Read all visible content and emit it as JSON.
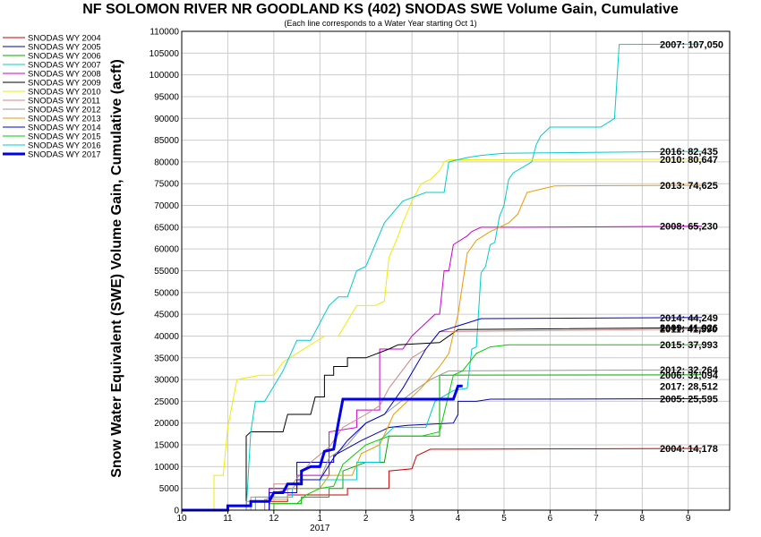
{
  "chart_data": {
    "type": "line",
    "title": "NF SOLOMON RIVER NR GOODLAND KS (402) SNODAS SWE Volume Gain, Cumulative",
    "subtitle": "(Each line corresponds to a Water Year starting Oct 1)",
    "ylabel": "Snow Water Equivalent (SWE) Volume Gain, Cumulative (acft)",
    "x_ticks": [
      "10",
      "11",
      "12",
      "1",
      "2",
      "3",
      "4",
      "5",
      "6",
      "7",
      "8",
      "9"
    ],
    "x_year_label": "2017",
    "xlim": [
      10,
      21.9
    ],
    "ylim": [
      0,
      110000
    ],
    "y_step": 5000,
    "grid": true,
    "legend_position": "left",
    "series": [
      {
        "name": "SNODAS WY 2004",
        "color": "#cc0000",
        "width": 1,
        "end_label": "2004: 14,178",
        "points": [
          [
            10,
            0
          ],
          [
            11.8,
            0
          ],
          [
            11.8,
            2000
          ],
          [
            12.3,
            2000
          ],
          [
            12.3,
            3500
          ],
          [
            13.6,
            3500
          ],
          [
            13.6,
            5000
          ],
          [
            14.5,
            5000
          ],
          [
            14.5,
            9000
          ],
          [
            15,
            9500
          ],
          [
            15.1,
            12500
          ],
          [
            15.4,
            14000
          ],
          [
            21.3,
            14178
          ]
        ]
      },
      {
        "name": "SNODAS WY 2005",
        "color": "#0000aa",
        "width": 1,
        "end_label": "2005: 25,595",
        "points": [
          [
            10,
            0
          ],
          [
            11.9,
            0
          ],
          [
            11.9,
            5000
          ],
          [
            12.5,
            5000
          ],
          [
            12.5,
            11000
          ],
          [
            13.3,
            11000
          ],
          [
            13.3,
            12500
          ],
          [
            13.9,
            16000
          ],
          [
            14.5,
            19000
          ],
          [
            14.9,
            19500
          ],
          [
            15.9,
            20000
          ],
          [
            16,
            22000
          ],
          [
            16,
            25000
          ],
          [
            16.4,
            25000
          ],
          [
            16.7,
            25500
          ],
          [
            21.3,
            25595
          ]
        ]
      },
      {
        "name": "SNODAS WY 2006",
        "color": "#00aa00",
        "width": 1,
        "end_label": "2006: 31,094",
        "points": [
          [
            10,
            0
          ],
          [
            11.9,
            0
          ],
          [
            11.9,
            1500
          ],
          [
            12.6,
            1500
          ],
          [
            12.6,
            3000
          ],
          [
            13.2,
            3000
          ],
          [
            13.2,
            5000
          ],
          [
            13.5,
            5000
          ],
          [
            13.5,
            9000
          ],
          [
            14,
            11000
          ],
          [
            14.4,
            11000
          ],
          [
            14.5,
            17000
          ],
          [
            15.6,
            17000
          ],
          [
            15.6,
            31000
          ],
          [
            21.3,
            31094
          ]
        ]
      },
      {
        "name": "SNODAS WY 2007",
        "color": "#00cccc",
        "width": 1,
        "end_label": "2007: 107,050",
        "points": [
          [
            10,
            0
          ],
          [
            11.6,
            0
          ],
          [
            11.6,
            3000
          ],
          [
            12.4,
            3000
          ],
          [
            12.4,
            5000
          ],
          [
            13,
            5000
          ],
          [
            13,
            7000
          ],
          [
            13.8,
            7000
          ],
          [
            13.8,
            11000
          ],
          [
            14.3,
            11000
          ],
          [
            14.3,
            16000
          ],
          [
            14.6,
            19000
          ],
          [
            15.3,
            19000
          ],
          [
            15.5,
            25000
          ],
          [
            15.9,
            27500
          ],
          [
            16.2,
            28000
          ],
          [
            16.3,
            37000
          ],
          [
            16.4,
            37500
          ],
          [
            16.5,
            54500
          ],
          [
            16.6,
            56000
          ],
          [
            16.7,
            61000
          ],
          [
            16.8,
            61500
          ],
          [
            16.9,
            67500
          ],
          [
            17,
            70000
          ],
          [
            17.1,
            76000
          ],
          [
            17.2,
            77500
          ],
          [
            17.6,
            80000
          ],
          [
            17.7,
            84000
          ],
          [
            17.8,
            86000
          ],
          [
            18,
            88000
          ],
          [
            19.1,
            88000
          ],
          [
            19.4,
            90000
          ],
          [
            19.5,
            107000
          ],
          [
            21.3,
            107050
          ]
        ]
      },
      {
        "name": "SNODAS WY 2008",
        "color": "#cc00cc",
        "width": 1,
        "end_label": "2008: 65,230",
        "points": [
          [
            10,
            0
          ],
          [
            11.9,
            0
          ],
          [
            11.9,
            5000
          ],
          [
            12.5,
            5000
          ],
          [
            12.5,
            8000
          ],
          [
            13.2,
            8000
          ],
          [
            13.2,
            18000
          ],
          [
            13.8,
            19000
          ],
          [
            13.8,
            23000
          ],
          [
            14.3,
            23000
          ],
          [
            14.3,
            37000
          ],
          [
            14.8,
            37000
          ],
          [
            15,
            40000
          ],
          [
            15.5,
            45000
          ],
          [
            15.6,
            45000
          ],
          [
            15.7,
            55000
          ],
          [
            15.8,
            55000
          ],
          [
            15.9,
            61000
          ],
          [
            16.2,
            63000
          ],
          [
            16.3,
            64000
          ],
          [
            16.5,
            65000
          ],
          [
            17.4,
            65000
          ],
          [
            21.3,
            65230
          ]
        ]
      },
      {
        "name": "SNODAS WY 2009",
        "color": "#000000",
        "width": 1,
        "end_label": "2009: 41,926",
        "points": [
          [
            10,
            0
          ],
          [
            11.4,
            0
          ],
          [
            11.4,
            17000
          ],
          [
            11.5,
            18000
          ],
          [
            12.2,
            18000
          ],
          [
            12.3,
            22000
          ],
          [
            12.8,
            22000
          ],
          [
            12.9,
            26000
          ],
          [
            13.1,
            26000
          ],
          [
            13.1,
            31000
          ],
          [
            13.3,
            31000
          ],
          [
            13.3,
            33000
          ],
          [
            13.6,
            33000
          ],
          [
            13.6,
            35000
          ],
          [
            14,
            35000
          ],
          [
            14.5,
            37000
          ],
          [
            14.7,
            38000
          ],
          [
            15.6,
            38500
          ],
          [
            15.8,
            40000
          ],
          [
            16,
            41500
          ],
          [
            21.3,
            41926
          ]
        ]
      },
      {
        "name": "SNODAS WY 2010",
        "color": "#eeee00",
        "width": 1,
        "end_label": "2010: 80,647",
        "points": [
          [
            10,
            0
          ],
          [
            10.7,
            0
          ],
          [
            10.7,
            8000
          ],
          [
            10.9,
            8000
          ],
          [
            11,
            19000
          ],
          [
            11.2,
            30000
          ],
          [
            11.7,
            31000
          ],
          [
            12,
            31000
          ],
          [
            12.2,
            34000
          ],
          [
            13.1,
            40000
          ],
          [
            13.4,
            40000
          ],
          [
            13.8,
            47000
          ],
          [
            14.2,
            47000
          ],
          [
            14.4,
            48000
          ],
          [
            14.5,
            58000
          ],
          [
            14.7,
            63000
          ],
          [
            14.8,
            66000
          ],
          [
            15,
            71000
          ],
          [
            15.1,
            73000
          ],
          [
            15.2,
            75000
          ],
          [
            15.4,
            76000
          ],
          [
            15.6,
            78000
          ],
          [
            15.7,
            80000
          ],
          [
            15.8,
            80500
          ],
          [
            21.3,
            80647
          ]
        ]
      },
      {
        "name": "SNODAS WY 2011",
        "color": "#cc8888",
        "width": 1,
        "end_label": "2011: 41,590",
        "points": [
          [
            10,
            0
          ],
          [
            11.5,
            0
          ],
          [
            11.5,
            3000
          ],
          [
            12,
            3000
          ],
          [
            12,
            6000
          ],
          [
            12.4,
            6000
          ],
          [
            12.8,
            11000
          ],
          [
            13.2,
            14500
          ],
          [
            13.5,
            19000
          ],
          [
            14,
            22000
          ],
          [
            14.3,
            24000
          ],
          [
            14.5,
            28000
          ],
          [
            15,
            35000
          ],
          [
            15.3,
            37000
          ],
          [
            15.6,
            41000
          ],
          [
            21.3,
            41590
          ]
        ]
      },
      {
        "name": "SNODAS WY 2012",
        "color": "#999999",
        "width": 1,
        "end_label": "2012: 32,264",
        "points": [
          [
            10,
            0
          ],
          [
            11.4,
            0
          ],
          [
            11.4,
            2000
          ],
          [
            11.8,
            2000
          ],
          [
            12,
            4000
          ],
          [
            12.4,
            5000
          ],
          [
            12.6,
            7000
          ],
          [
            13,
            7000
          ],
          [
            13.2,
            12000
          ],
          [
            13.6,
            15000
          ],
          [
            14,
            20000
          ],
          [
            14.4,
            22000
          ],
          [
            15,
            27000
          ],
          [
            15.4,
            30000
          ],
          [
            15.6,
            31000
          ],
          [
            15.8,
            32000
          ],
          [
            21.3,
            32264
          ]
        ]
      },
      {
        "name": "SNODAS WY 2013",
        "color": "#ee9900",
        "width": 1,
        "end_label": "2013: 74,625",
        "points": [
          [
            10,
            0
          ],
          [
            11.8,
            0
          ],
          [
            11.8,
            2500
          ],
          [
            12.3,
            2500
          ],
          [
            12.3,
            5000
          ],
          [
            13,
            5000
          ],
          [
            13.2,
            8000
          ],
          [
            13.7,
            8000
          ],
          [
            13.9,
            13000
          ],
          [
            14.3,
            15000
          ],
          [
            14.6,
            22000
          ],
          [
            15.2,
            28000
          ],
          [
            15.6,
            33000
          ],
          [
            15.8,
            36000
          ],
          [
            16,
            45000
          ],
          [
            16.2,
            59000
          ],
          [
            16.4,
            62000
          ],
          [
            16.7,
            64000
          ],
          [
            16.9,
            65000
          ],
          [
            17.1,
            66000
          ],
          [
            17.3,
            68000
          ],
          [
            17.5,
            73000
          ],
          [
            17.9,
            74000
          ],
          [
            18.1,
            74500
          ],
          [
            21.3,
            74625
          ]
        ]
      },
      {
        "name": "SNODAS WY 2014",
        "color": "#0000cc",
        "width": 1,
        "end_label": "2014: 44,249",
        "points": [
          [
            10,
            0
          ],
          [
            11.9,
            0
          ],
          [
            11.9,
            4000
          ],
          [
            12.5,
            4000
          ],
          [
            12.5,
            7000
          ],
          [
            13,
            7000
          ],
          [
            13.3,
            12000
          ],
          [
            13.6,
            16000
          ],
          [
            14,
            20000
          ],
          [
            14.4,
            22000
          ],
          [
            14.8,
            28000
          ],
          [
            15.3,
            37000
          ],
          [
            15.6,
            41000
          ],
          [
            15.9,
            42000
          ],
          [
            16.2,
            43000
          ],
          [
            16.5,
            44000
          ],
          [
            21.3,
            44249
          ]
        ]
      },
      {
        "name": "SNODAS WY 2015",
        "color": "#00cc00",
        "width": 1,
        "end_label": "2015: 37,993",
        "points": [
          [
            10,
            0
          ],
          [
            12,
            0
          ],
          [
            12,
            1500
          ],
          [
            12.5,
            1500
          ],
          [
            12.7,
            3500
          ],
          [
            13,
            5000
          ],
          [
            13.3,
            5500
          ],
          [
            13.5,
            10500
          ],
          [
            14,
            15000
          ],
          [
            14.5,
            17000
          ],
          [
            15.2,
            17000
          ],
          [
            15.6,
            18000
          ],
          [
            15.9,
            31000
          ],
          [
            16.1,
            32000
          ],
          [
            16.4,
            36000
          ],
          [
            16.7,
            37500
          ],
          [
            17.1,
            38000
          ],
          [
            21.3,
            37993
          ]
        ]
      },
      {
        "name": "SNODAS WY 2016",
        "color": "#00cccc",
        "width": 1,
        "end_label": "2016: 82,435",
        "points": [
          [
            10,
            0
          ],
          [
            11.4,
            0
          ],
          [
            11.5,
            18000
          ],
          [
            11.6,
            25000
          ],
          [
            11.8,
            25000
          ],
          [
            12.2,
            32000
          ],
          [
            12.5,
            39000
          ],
          [
            12.8,
            39000
          ],
          [
            13.2,
            47000
          ],
          [
            13.4,
            49000
          ],
          [
            13.6,
            49000
          ],
          [
            13.8,
            55000
          ],
          [
            14,
            56000
          ],
          [
            14.4,
            66000
          ],
          [
            14.8,
            71000
          ],
          [
            15.3,
            73000
          ],
          [
            15.7,
            73000
          ],
          [
            15.8,
            80000
          ],
          [
            16.2,
            81000
          ],
          [
            16.5,
            81500
          ],
          [
            17,
            82000
          ],
          [
            21.3,
            82435
          ]
        ]
      },
      {
        "name": "SNODAS WY 2017",
        "color": "#0000ee",
        "width": 3,
        "end_label": "2017: 28,512",
        "points": [
          [
            10,
            0
          ],
          [
            11,
            0
          ],
          [
            11,
            1000
          ],
          [
            11.5,
            1000
          ],
          [
            11.5,
            2000
          ],
          [
            11.9,
            2000
          ],
          [
            12,
            4000
          ],
          [
            12.2,
            4000
          ],
          [
            12.3,
            6000
          ],
          [
            12.6,
            6000
          ],
          [
            12.6,
            9000
          ],
          [
            12.8,
            10000
          ],
          [
            13,
            10000
          ],
          [
            13.1,
            13500
          ],
          [
            13.3,
            14000
          ],
          [
            13.4,
            20000
          ],
          [
            13.5,
            25500
          ],
          [
            15.5,
            25500
          ],
          [
            15.9,
            25500
          ],
          [
            16,
            28500
          ],
          [
            16.1,
            28512
          ]
        ]
      }
    ]
  }
}
